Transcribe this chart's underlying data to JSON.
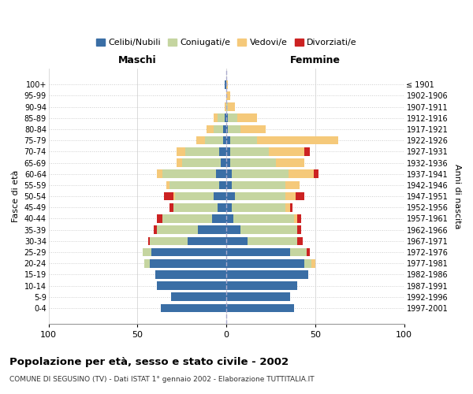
{
  "title": "Popolazione per età, sesso e stato civile - 2002",
  "subtitle": "COMUNE DI SEGUSINO (TV) - Dati ISTAT 1° gennaio 2002 - Elaborazione TUTTITALIA.IT",
  "xlabel_left": "Maschi",
  "xlabel_right": "Femmine",
  "ylabel_left": "Fasce di età",
  "ylabel_right": "Anni di nascita",
  "age_groups": [
    "0-4",
    "5-9",
    "10-14",
    "15-19",
    "20-24",
    "25-29",
    "30-34",
    "35-39",
    "40-44",
    "45-49",
    "50-54",
    "55-59",
    "60-64",
    "65-69",
    "70-74",
    "75-79",
    "80-84",
    "85-89",
    "90-94",
    "95-99",
    "100+"
  ],
  "birth_years": [
    "1997-2001",
    "1992-1996",
    "1987-1991",
    "1982-1986",
    "1977-1981",
    "1972-1976",
    "1967-1971",
    "1962-1966",
    "1957-1961",
    "1952-1956",
    "1947-1951",
    "1942-1946",
    "1937-1941",
    "1932-1936",
    "1927-1931",
    "1922-1926",
    "1917-1921",
    "1912-1916",
    "1907-1911",
    "1902-1906",
    "≤ 1901"
  ],
  "colors": {
    "celibi": "#3a6ea5",
    "coniugati": "#c5d5a0",
    "vedovi": "#f5c97a",
    "divorziati": "#cc2222"
  },
  "legend_labels": [
    "Celibi/Nubili",
    "Coniugati/e",
    "Vedovi/e",
    "Divorziati/e"
  ],
  "males": {
    "celibi": [
      37,
      31,
      39,
      40,
      43,
      42,
      22,
      16,
      8,
      5,
      7,
      4,
      6,
      3,
      4,
      2,
      2,
      1,
      0,
      0,
      1
    ],
    "coniugati": [
      0,
      0,
      0,
      0,
      3,
      5,
      21,
      23,
      28,
      25,
      22,
      28,
      30,
      22,
      19,
      10,
      5,
      4,
      0,
      0,
      0
    ],
    "vedovi": [
      0,
      0,
      0,
      0,
      0,
      0,
      0,
      0,
      0,
      0,
      1,
      2,
      3,
      3,
      5,
      5,
      4,
      2,
      1,
      0,
      0
    ],
    "divorziati": [
      0,
      0,
      0,
      0,
      0,
      0,
      1,
      2,
      3,
      2,
      5,
      0,
      0,
      0,
      0,
      0,
      0,
      0,
      0,
      0,
      0
    ]
  },
  "females": {
    "nubili": [
      38,
      36,
      40,
      46,
      44,
      36,
      12,
      8,
      4,
      3,
      5,
      3,
      3,
      2,
      2,
      2,
      1,
      1,
      0,
      0,
      0
    ],
    "coniugate": [
      0,
      0,
      0,
      0,
      4,
      9,
      28,
      32,
      34,
      30,
      28,
      30,
      32,
      26,
      22,
      15,
      7,
      5,
      1,
      0,
      0
    ],
    "vedove": [
      0,
      0,
      0,
      0,
      2,
      0,
      0,
      0,
      2,
      3,
      6,
      8,
      14,
      16,
      20,
      46,
      14,
      11,
      4,
      2,
      1
    ],
    "divorziate": [
      0,
      0,
      0,
      0,
      0,
      2,
      3,
      2,
      2,
      1,
      5,
      0,
      3,
      0,
      3,
      0,
      0,
      0,
      0,
      0,
      0
    ]
  },
  "xlim": 100,
  "bg_color": "#ffffff",
  "grid_color": "#cccccc",
  "bar_height": 0.75
}
